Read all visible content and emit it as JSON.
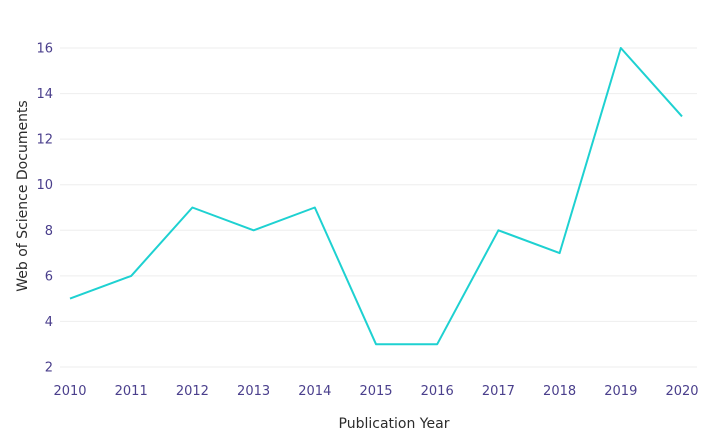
{
  "chart_data": {
    "type": "line",
    "xlabel": "Publication Year",
    "ylabel": "Web of Science Documents",
    "x": [
      2010,
      2011,
      2012,
      2013,
      2014,
      2015,
      2016,
      2017,
      2018,
      2019,
      2020
    ],
    "series": [
      {
        "values": [
          5,
          6,
          9,
          8,
          9,
          3,
          3,
          8,
          7,
          16,
          13
        ],
        "color": "#1ed1d1"
      }
    ],
    "x_tick_labels": [
      "2010",
      "2011",
      "2012",
      "2013",
      "2014",
      "2015",
      "2016",
      "2017",
      "2018",
      "2019",
      "2020"
    ],
    "y_tick_values": [
      2,
      4,
      6,
      8,
      10,
      12,
      14,
      16
    ],
    "y_tick_labels": [
      "2",
      "4",
      "6",
      "8",
      "10",
      "12",
      "14",
      "16"
    ],
    "xlim": [
      2010,
      2020
    ],
    "ylim": [
      2,
      16
    ],
    "grid": true,
    "legend": "none"
  }
}
